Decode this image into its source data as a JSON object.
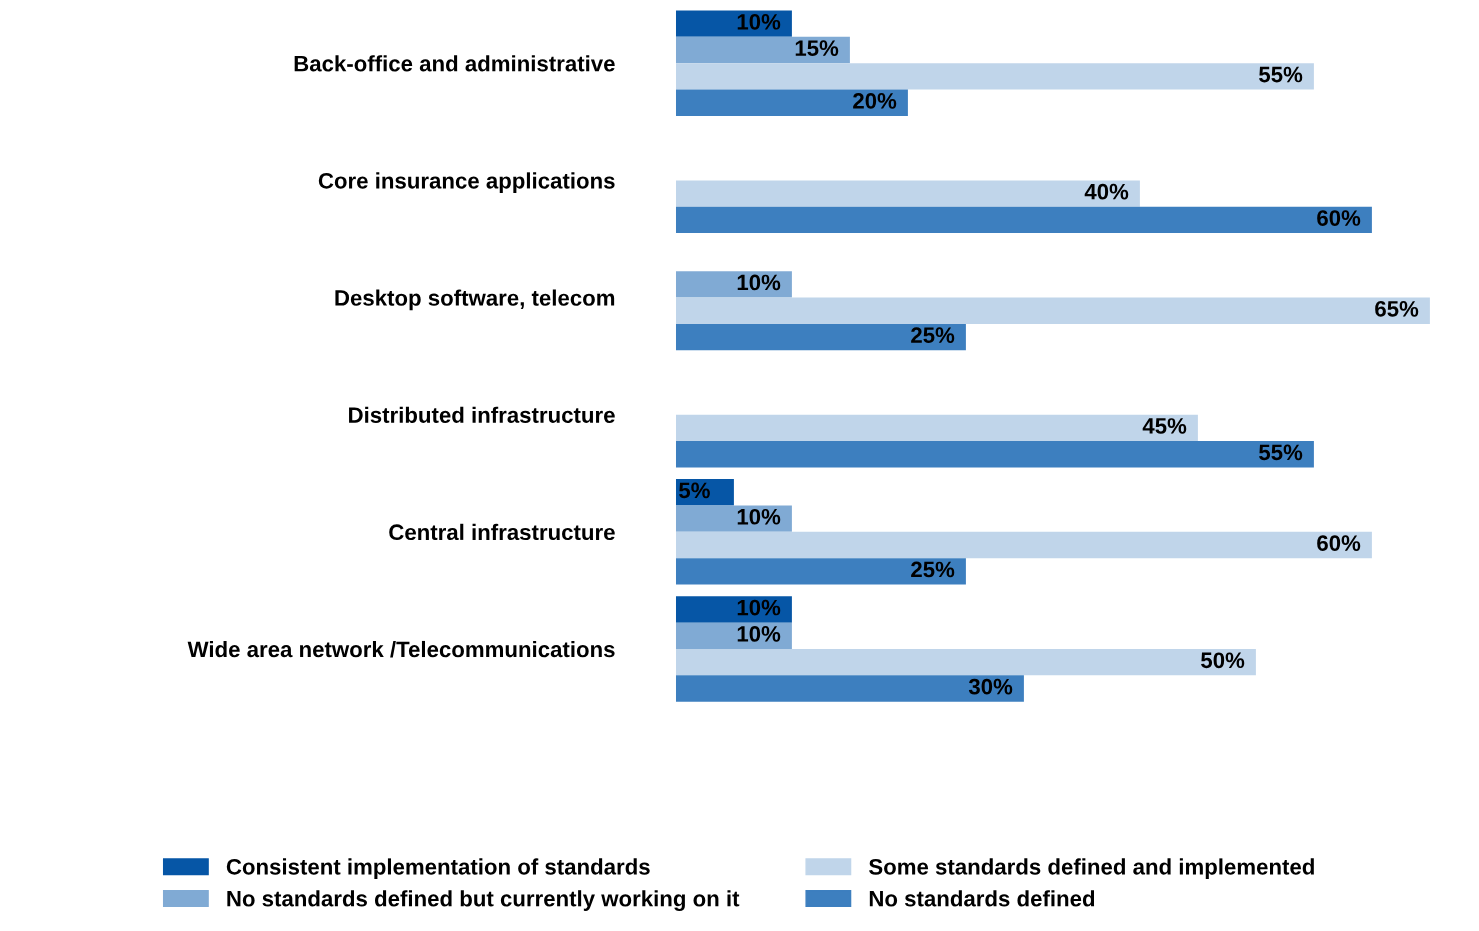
{
  "chart_data": {
    "type": "bar",
    "orientation": "horizontal",
    "categories": [
      "Back-office and administrative",
      "Core insurance applications",
      "Desktop software, telecom",
      "Distributed infrastructure",
      "Central infrastructure",
      "Wide area network /Telecommunications"
    ],
    "series": [
      {
        "name": "Consistent implementation of standards",
        "color": "#0656a6",
        "values": [
          10,
          null,
          null,
          null,
          5,
          10
        ],
        "value_labels": [
          "10%",
          null,
          null,
          null,
          "5%",
          "10%"
        ]
      },
      {
        "name": "No standards defined but currently working on it",
        "color": "#80aad4",
        "values": [
          15,
          null,
          10,
          null,
          10,
          10
        ],
        "value_labels": [
          "15%",
          null,
          "10%",
          null,
          "10%",
          "10%"
        ]
      },
      {
        "name": "Some standards defined and implemented",
        "color": "#c0d5ea",
        "values": [
          55,
          40,
          65,
          45,
          60,
          50
        ],
        "value_labels": [
          "55%",
          "40%",
          "65%",
          "45%",
          "60%",
          "50%"
        ]
      },
      {
        "name": "No standards defined",
        "color": "#3d7fbf",
        "values": [
          20,
          60,
          25,
          55,
          25,
          30
        ],
        "value_labels": [
          "20%",
          "60%",
          "25%",
          "55%",
          "25%",
          "30%"
        ]
      }
    ],
    "legend": "bottom",
    "tick_labels": "y",
    "grid": false
  }
}
